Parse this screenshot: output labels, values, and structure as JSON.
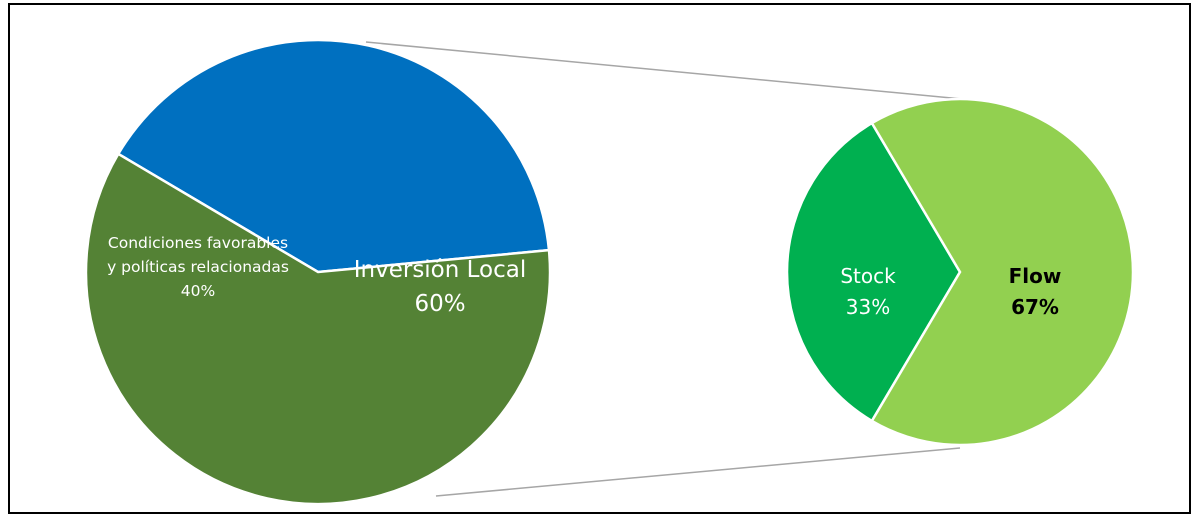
{
  "chart_data": {
    "type": "pie-of-pie",
    "main_pie": {
      "slices": [
        {
          "name": "Condiciones favorables y políticas relacionadas",
          "name_lines": [
            "Condiciones favorables",
            "y políticas relacionadas"
          ],
          "value": 40,
          "label": "40%",
          "color": "#0070C0",
          "text_color": "#ffffff"
        },
        {
          "name": "Inversión Local",
          "name_lines": [
            "Inversión Local"
          ],
          "value": 60,
          "label": "60%",
          "color": "#548235",
          "text_color": "#ffffff"
        }
      ]
    },
    "sub_pie": {
      "parent": "Inversión Local",
      "slices": [
        {
          "name": "Stock",
          "name_lines": [
            "Stock"
          ],
          "value": 33,
          "label": "33%",
          "color": "#00B050",
          "text_color": "#ffffff"
        },
        {
          "name": "Flow",
          "name_lines": [
            "Flow"
          ],
          "value": 67,
          "label": "67%",
          "color": "#92D050",
          "text_color": "#000000",
          "bold": true
        }
      ]
    },
    "legend": "none"
  }
}
